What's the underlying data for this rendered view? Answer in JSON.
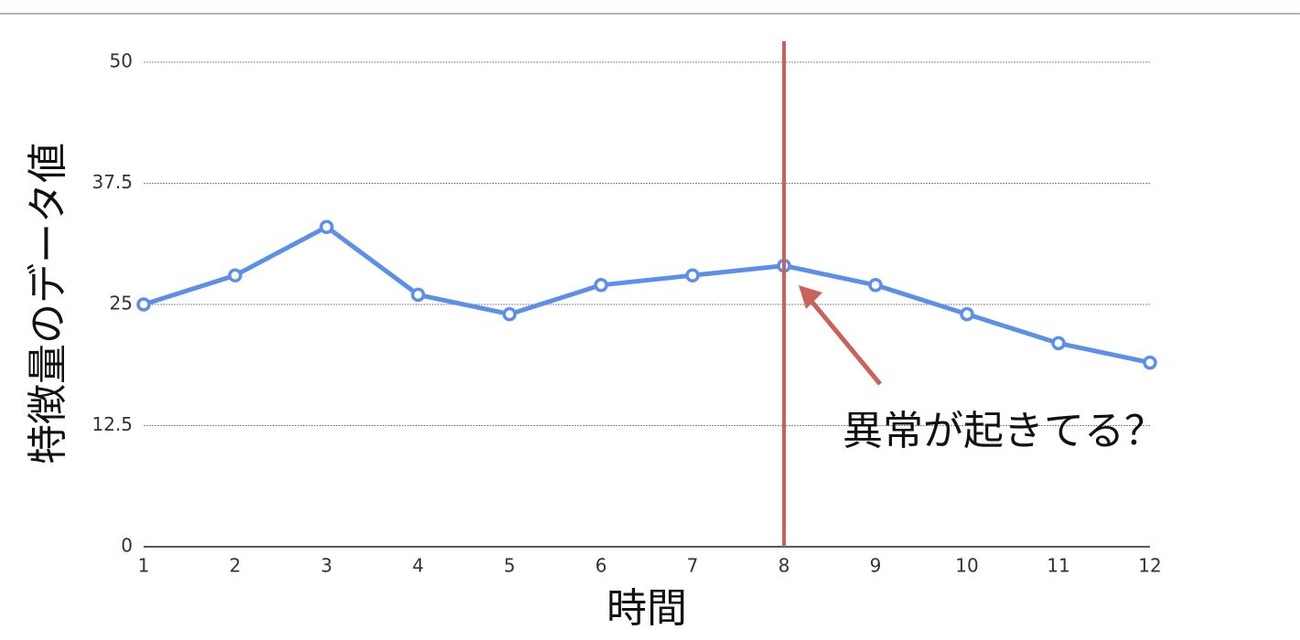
{
  "chart_data": {
    "type": "line",
    "x_label": "時間",
    "y_label": "特徴量のデータ値",
    "x": [
      1,
      2,
      3,
      4,
      5,
      6,
      7,
      8,
      9,
      10,
      11,
      12
    ],
    "series": [
      {
        "name": "特徴量",
        "color": "#5b8fe8",
        "values": [
          25,
          28,
          33,
          26,
          24,
          27,
          28,
          29,
          27,
          24,
          21,
          19
        ]
      }
    ],
    "xlim": [
      1,
      12
    ],
    "xticks": [
      1,
      2,
      3,
      4,
      5,
      6,
      7,
      8,
      9,
      10,
      11,
      12
    ],
    "ylim": [
      0,
      50
    ],
    "yticks": [
      0,
      12.5,
      25,
      37.5,
      50
    ],
    "grid": true,
    "annotations": [
      {
        "text": "異常が起きてる？",
        "x": 8,
        "color": "#c8625a"
      }
    ]
  }
}
